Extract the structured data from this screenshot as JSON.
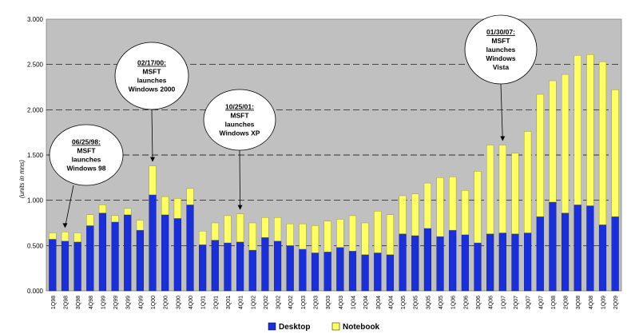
{
  "chart_data": {
    "type": "bar",
    "stacked": true,
    "ylabel": "(units in mns)",
    "ylim": [
      0,
      3.0
    ],
    "yticks": [
      "0.000",
      "0.500",
      "1.000",
      "1.500",
      "2.000",
      "2.500",
      "3.000"
    ],
    "grid": true,
    "legend_position": "bottom-center",
    "categories": [
      "1Q98",
      "2Q98",
      "3Q98",
      "4Q98",
      "1Q99",
      "2Q99",
      "3Q99",
      "4Q99",
      "1Q00",
      "2Q00",
      "3Q00",
      "4Q00",
      "1Q01",
      "2Q01",
      "3Q01",
      "4Q01",
      "1Q02",
      "2Q02",
      "3Q02",
      "4Q02",
      "1Q03",
      "2Q03",
      "3Q03",
      "4Q03",
      "1Q04",
      "2Q04",
      "3Q04",
      "4Q04",
      "1Q05",
      "2Q05",
      "3Q05",
      "4Q05",
      "1Q06",
      "2Q06",
      "3Q06",
      "4Q06",
      "1Q07",
      "2Q07",
      "3Q07",
      "4Q07",
      "1Q08",
      "2Q08",
      "3Q08",
      "4Q08",
      "1Q09",
      "2Q09"
    ],
    "series": [
      {
        "name": "Desktop",
        "color": "#1a2fd6",
        "values": [
          0.57,
          0.55,
          0.54,
          0.72,
          0.86,
          0.76,
          0.84,
          0.67,
          1.06,
          0.84,
          0.8,
          0.95,
          0.51,
          0.56,
          0.53,
          0.54,
          0.45,
          0.59,
          0.55,
          0.5,
          0.46,
          0.42,
          0.43,
          0.48,
          0.44,
          0.4,
          0.42,
          0.4,
          0.63,
          0.61,
          0.69,
          0.6,
          0.67,
          0.62,
          0.53,
          0.63,
          0.64,
          0.63,
          0.64,
          0.82,
          0.98,
          0.86,
          0.95,
          0.94,
          0.73,
          0.82
        ]
      },
      {
        "name": "Notebook",
        "color": "#ffff66",
        "values": [
          0.07,
          0.1,
          0.1,
          0.12,
          0.09,
          0.07,
          0.07,
          0.11,
          0.32,
          0.2,
          0.22,
          0.18,
          0.15,
          0.19,
          0.3,
          0.31,
          0.3,
          0.22,
          0.26,
          0.24,
          0.28,
          0.3,
          0.34,
          0.31,
          0.39,
          0.35,
          0.46,
          0.44,
          0.42,
          0.46,
          0.5,
          0.65,
          0.59,
          0.49,
          0.79,
          0.98,
          0.97,
          0.89,
          1.12,
          1.35,
          1.34,
          1.53,
          1.65,
          1.67,
          1.8,
          1.4
        ]
      }
    ],
    "annotations": [
      {
        "date": "06/25/98:",
        "lines": [
          "MSFT",
          "launches",
          "Windows 98"
        ],
        "category": "2Q98"
      },
      {
        "date": "02/17/00:",
        "lines": [
          "MSFT",
          "launches",
          "Windows 2000"
        ],
        "category": "1Q00"
      },
      {
        "date": "10/25/01:",
        "lines": [
          "MSFT",
          "launches",
          "Windows XP"
        ],
        "category": "4Q01"
      },
      {
        "date": "01/30/07:",
        "lines": [
          "MSFT",
          "launches",
          "Windows",
          "Vista"
        ],
        "category": "1Q07"
      }
    ]
  }
}
